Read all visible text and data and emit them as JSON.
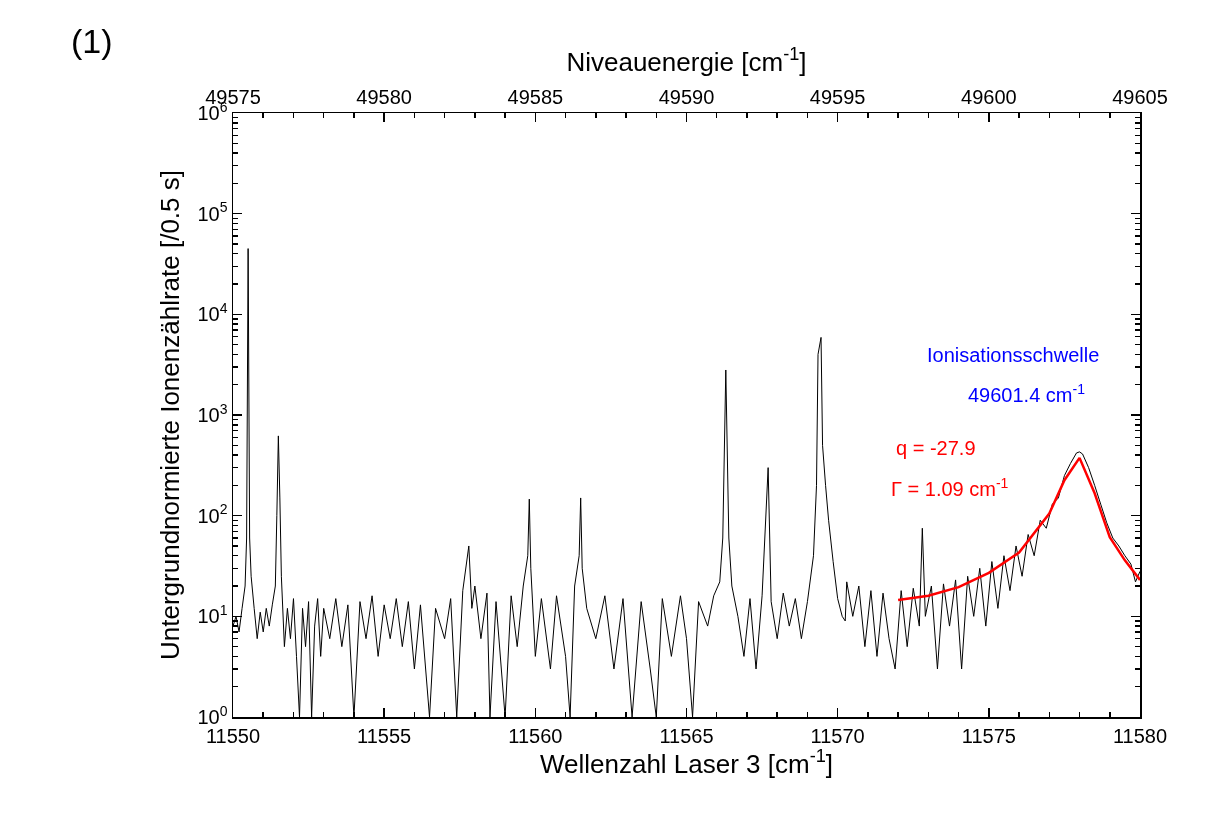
{
  "chart_data": {
    "type": "line",
    "xlabel": "Wellenzahl Laser 3 [cm$^{-1}$]",
    "x2label": "Niveauenergie [cm$^{-1}$]",
    "ylabel": "Untergrundnormierte Ionenzählrate [/0.5 s]",
    "xlim": [
      11550,
      11580
    ],
    "xticks": [
      11550,
      11555,
      11560,
      11565,
      11570,
      11575,
      11580
    ],
    "x2lim": [
      49575,
      49605
    ],
    "x2ticks": [
      49575,
      49580,
      49585,
      49590,
      49595,
      49600,
      49605
    ],
    "ylim": [
      1,
      1000000
    ],
    "log": "y",
    "yticks": [
      {
        "value": 1,
        "label": "10$^{0}$"
      },
      {
        "value": 10,
        "label": "10$^{1}$"
      },
      {
        "value": 100,
        "label": "10$^{2}$"
      },
      {
        "value": 1000,
        "label": "10$^{3}$"
      },
      {
        "value": 10000,
        "label": "10$^{4}$"
      },
      {
        "value": 100000,
        "label": "10$^{5}$"
      },
      {
        "value": 1000000,
        "label": "10$^{6}$"
      }
    ],
    "grid": false,
    "marker": "none",
    "line_style": "solid",
    "annotations": [
      "(1)",
      "Ionisationsschwelle",
      "49601.4 cm$^{-1}$",
      "q = -27.9",
      "Γ = 1.09 cm$^{-1}$"
    ],
    "series": [
      {
        "color": "#000000",
        "x": [
          11550.0,
          11550.1,
          11550.2,
          11550.3,
          11550.4,
          11550.45,
          11550.5,
          11550.55,
          11550.6,
          11550.7,
          11550.8,
          11550.9,
          11551.0,
          11551.1,
          11551.2,
          11551.3,
          11551.4,
          11551.45,
          11551.5,
          11551.55,
          11551.6,
          11551.7,
          11551.8,
          11551.9,
          11552.0,
          11552.1,
          11552.2,
          11552.3,
          11552.4,
          11552.5,
          11552.6,
          11552.7,
          11552.8,
          11552.9,
          11553.0,
          11553.2,
          11553.4,
          11553.6,
          11553.8,
          11554.0,
          11554.2,
          11554.4,
          11554.6,
          11554.8,
          11555.0,
          11555.2,
          11555.4,
          11555.6,
          11555.8,
          11556.0,
          11556.2,
          11556.5,
          11556.7,
          11557.0,
          11557.2,
          11557.4,
          11557.6,
          11557.8,
          11557.9,
          11558.0,
          11558.2,
          11558.4,
          11558.5,
          11558.7,
          11559.0,
          11559.2,
          11559.4,
          11559.6,
          11559.75,
          11559.8,
          11559.85,
          11560.0,
          11560.2,
          11560.5,
          11560.7,
          11561.0,
          11561.15,
          11561.3,
          11561.45,
          11561.5,
          11561.55,
          11561.7,
          11562.0,
          11562.3,
          11562.6,
          11562.9,
          11563.2,
          11563.5,
          11563.8,
          11564.0,
          11564.2,
          11564.5,
          11564.8,
          11565.0,
          11565.2,
          11565.4,
          11565.7,
          11565.9,
          11566.1,
          11566.2,
          11566.3,
          11566.4,
          11566.5,
          11566.7,
          11566.9,
          11567.1,
          11567.3,
          11567.5,
          11567.7,
          11567.8,
          11568.0,
          11568.2,
          11568.4,
          11568.6,
          11568.8,
          11569.0,
          11569.2,
          11569.3,
          11569.35,
          11569.45,
          11569.5,
          11569.6,
          11569.7,
          11569.85,
          11570.0,
          11570.15,
          11570.25,
          11570.3,
          11570.5,
          11570.7,
          11570.9,
          11571.1,
          11571.3,
          11571.5,
          11571.7,
          11571.9,
          11572.1,
          11572.3,
          11572.5,
          11572.7,
          11572.8,
          11572.9,
          11573.1,
          11573.3,
          11573.5,
          11573.7,
          11573.9,
          11574.1,
          11574.3,
          11574.5,
          11574.7,
          11574.9,
          11575.1,
          11575.3,
          11575.5,
          11575.7,
          11575.9,
          11576.1,
          11576.3,
          11576.5,
          11576.7,
          11576.9,
          11577.1,
          11577.3,
          11577.5,
          11577.7,
          11577.9,
          11578.0,
          11578.1,
          11578.3,
          11578.5,
          11578.7,
          11578.9,
          11579.1,
          11579.3,
          11579.5,
          11579.7,
          11579.85,
          11580.0
        ],
        "values": [
          8,
          10,
          7,
          12,
          20,
          60,
          45000,
          60,
          25,
          12,
          6,
          11,
          7,
          12,
          8,
          13,
          20,
          100,
          620,
          150,
          25,
          5,
          12,
          6,
          15,
          4,
          1,
          12,
          5,
          14,
          1,
          8,
          15,
          4,
          12,
          6,
          15,
          5,
          13,
          1,
          14,
          6,
          16,
          4,
          13,
          6,
          15,
          5,
          14,
          3,
          13,
          1,
          12,
          6,
          15,
          1,
          18,
          50,
          12,
          20,
          6,
          17,
          1,
          14,
          1,
          16,
          5,
          20,
          40,
          146,
          30,
          4,
          15,
          3,
          16,
          4,
          1,
          20,
          40,
          150,
          30,
          12,
          6,
          16,
          3,
          15,
          1,
          14,
          3,
          1,
          15,
          4,
          16,
          6,
          1,
          14,
          8,
          16,
          22,
          60,
          2800,
          60,
          20,
          10,
          4,
          15,
          3,
          16,
          300,
          14,
          6,
          17,
          8,
          15,
          6,
          14,
          40,
          200,
          4000,
          5900,
          500,
          200,
          90,
          35,
          15,
          10,
          9,
          22,
          10,
          20,
          5,
          18,
          4,
          17,
          6,
          3,
          18,
          5,
          19,
          8,
          75,
          10,
          20,
          3,
          21,
          8,
          23,
          3,
          25,
          10,
          30,
          8,
          35,
          12,
          40,
          18,
          50,
          25,
          65,
          40,
          90,
          75,
          130,
          150,
          250,
          330,
          420,
          430,
          410,
          300,
          200,
          130,
          85,
          60,
          50,
          40,
          33,
          22,
          28
        ]
      },
      {
        "color": "#ff0000",
        "x": [
          11572,
          11573,
          11574,
          11575,
          11576,
          11577,
          11577.5,
          11578,
          11578.5,
          11579,
          11579.5,
          11580
        ],
        "values": [
          14.5,
          16,
          19.5,
          27,
          43,
          105,
          225,
          375,
          167,
          61,
          36,
          23
        ]
      }
    ]
  }
}
